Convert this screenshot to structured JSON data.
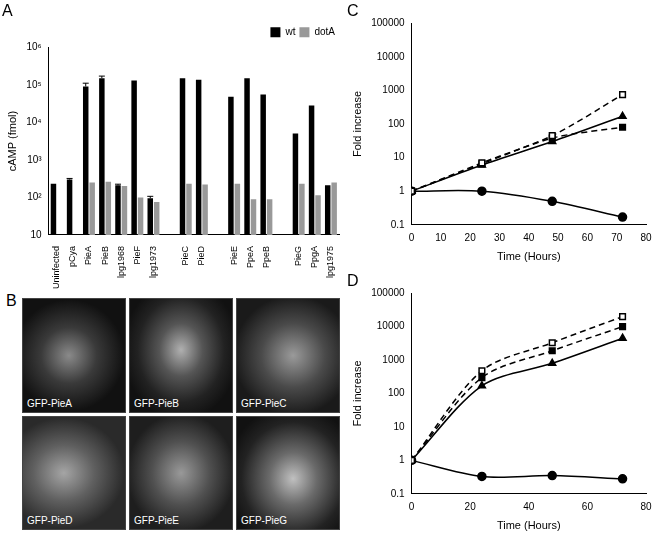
{
  "chart_data": [
    {
      "type": "bar",
      "title": "A",
      "categories": [
        "Uninfected",
        "pCya",
        "PieA",
        "PieB",
        "lpg1968",
        "PieF",
        "lpg1973",
        null,
        "PieC",
        "PieD",
        null,
        "PieE",
        "PpeA",
        "PpeB",
        null,
        "PieG",
        "PpgA",
        "lpg1975"
      ],
      "series": [
        {
          "name": "wt",
          "color": "#000000",
          "values": [
            230,
            300,
            90000,
            150000,
            210,
            130000,
            95,
            null,
            150000,
            135000,
            null,
            48000,
            150000,
            55000,
            null,
            5000,
            28000,
            210
          ],
          "errors": [
            null,
            20,
            20000,
            20000,
            15,
            null,
            12,
            null,
            null,
            null,
            null,
            null,
            null,
            null,
            null,
            null,
            null,
            null
          ]
        },
        {
          "name": "dotA",
          "color": "#999999",
          "values": [
            null,
            null,
            250,
            260,
            200,
            100,
            75,
            null,
            230,
            220,
            null,
            230,
            90,
            90,
            null,
            230,
            115,
            250
          ]
        }
      ],
      "y_label": "cAMP (fmol)",
      "log": "y",
      "ylim": [
        10,
        1000000
      ],
      "yticks": [
        10,
        {
          "value": 100,
          "label": "10²"
        },
        {
          "value": 1000,
          "label": "10³"
        },
        {
          "value": 10000,
          "label": "10⁴"
        },
        {
          "value": 100000,
          "label": "10⁵"
        },
        {
          "value": 1000000,
          "label": "10⁶"
        }
      ],
      "grid": false,
      "legend": "upper right"
    },
    {
      "type": "line",
      "title": "C",
      "x": [
        0,
        24,
        48,
        72
      ],
      "series": [
        {
          "color": "#000000",
          "marker": "square-open",
          "line_style": "dashed",
          "values": [
            1,
            7,
            45,
            750
          ]
        },
        {
          "color": "#000000",
          "marker": "triangle",
          "line_style": "solid",
          "values": [
            1,
            6,
            30,
            170
          ]
        },
        {
          "color": "#000000",
          "marker": "square",
          "line_style": "dashed",
          "values": [
            1,
            6.5,
            38,
            80
          ]
        },
        {
          "color": "#000000",
          "marker": "circle",
          "line_style": "solid",
          "values": [
            1,
            1,
            0.5,
            0.17
          ]
        }
      ],
      "x_label": "Time (Hours)",
      "y_label": "Fold increase",
      "log": "y",
      "xlim": [
        0,
        80
      ],
      "xticks": [
        0,
        10,
        20,
        30,
        40,
        50,
        60,
        70,
        80
      ],
      "ylim": [
        0.1,
        100000
      ],
      "yticks": [
        0.1,
        1,
        10,
        100,
        1000,
        10000,
        100000
      ],
      "grid": false
    },
    {
      "type": "line",
      "title": "D",
      "x": [
        0,
        24,
        48,
        72
      ],
      "series": [
        {
          "color": "#000000",
          "marker": "square-open",
          "line_style": "dashed",
          "values": [
            1,
            480,
            3300,
            20000
          ]
        },
        {
          "color": "#000000",
          "marker": "square",
          "line_style": "dashed",
          "values": [
            1,
            300,
            1900,
            10000
          ]
        },
        {
          "color": "#000000",
          "marker": "triangle",
          "line_style": "solid",
          "values": [
            1,
            170,
            800,
            4500
          ]
        },
        {
          "color": "#000000",
          "marker": "circle",
          "line_style": "solid",
          "values": [
            1,
            0.33,
            0.35,
            0.28
          ]
        }
      ],
      "x_label": "Time (Hours)",
      "y_label": "Fold increase",
      "log": "y",
      "xlim": [
        0,
        80
      ],
      "xticks": [
        0,
        20,
        40,
        60,
        80
      ],
      "ylim": [
        0.1,
        100000
      ],
      "yticks": [
        0.1,
        1,
        10,
        100,
        1000,
        10000,
        100000
      ],
      "grid": false
    }
  ],
  "micrographs": {
    "label": "B",
    "panels": [
      "GFP-PieA",
      "GFP-PieB",
      "GFP-PieC",
      "GFP-PieD",
      "GFP-PieE",
      "GFP-PieG"
    ]
  }
}
